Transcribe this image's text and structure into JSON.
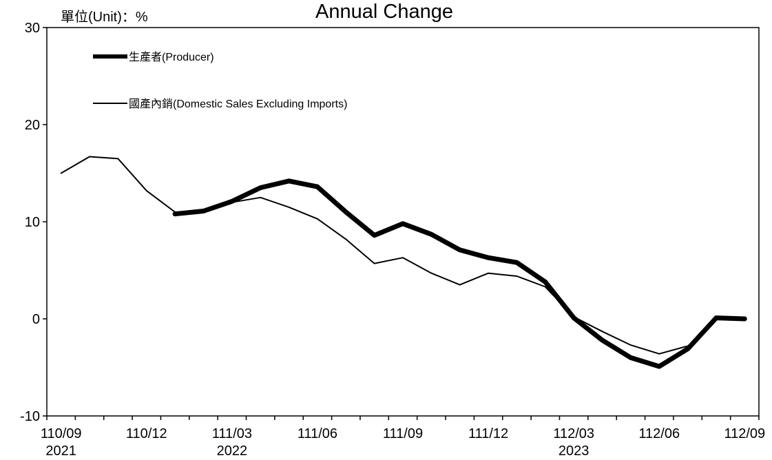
{
  "chart_data": {
    "type": "line",
    "title": "Annual Change",
    "unit_label": "單位(Unit)：%",
    "ylim": [
      -10,
      30
    ],
    "y_ticks": [
      "30",
      "20",
      "10",
      "0",
      "-10"
    ],
    "y_tick_values": [
      30,
      20,
      10,
      0,
      -10
    ],
    "x_months": [
      "2021-09",
      "2021-10",
      "2021-11",
      "2021-12",
      "2022-01",
      "2022-02",
      "2022-03",
      "2022-04",
      "2022-05",
      "2022-06",
      "2022-07",
      "2022-08",
      "2022-09",
      "2022-10",
      "2022-11",
      "2022-12",
      "2023-01",
      "2023-02",
      "2023-03",
      "2023-04",
      "2023-05",
      "2023-06",
      "2023-07",
      "2023-08",
      "2023-09"
    ],
    "x_tick_labels": [
      {
        "month": "2021-09",
        "label": "110/09",
        "year": "2021"
      },
      {
        "month": "2021-12",
        "label": "110/12",
        "year": ""
      },
      {
        "month": "2022-03",
        "label": "111/03",
        "year": "2022"
      },
      {
        "month": "2022-06",
        "label": "111/06",
        "year": ""
      },
      {
        "month": "2022-09",
        "label": "111/09",
        "year": ""
      },
      {
        "month": "2022-12",
        "label": "111/12",
        "year": ""
      },
      {
        "month": "2023-03",
        "label": "112/03",
        "year": "2023"
      },
      {
        "month": "2023-06",
        "label": "112/06",
        "year": ""
      },
      {
        "month": "2023-09",
        "label": "112/09",
        "year": ""
      }
    ],
    "series": [
      {
        "name": "生產者(Producer)",
        "color": "#000000",
        "values": [
          null,
          null,
          null,
          null,
          10.8,
          11.1,
          12.1,
          13.5,
          14.2,
          13.6,
          11.0,
          8.6,
          9.8,
          8.7,
          7.1,
          6.3,
          5.8,
          3.8,
          0.1,
          -2.2,
          -4.0,
          -4.9,
          -3.1,
          0.1,
          0.0
        ]
      },
      {
        "name": "國產內銷(Domestic Sales Excluding Imports)",
        "color": "#000000",
        "values": [
          15.0,
          16.7,
          16.5,
          13.2,
          11.0,
          11.0,
          12.0,
          12.5,
          11.5,
          10.3,
          8.2,
          5.7,
          6.3,
          4.7,
          3.5,
          4.7,
          4.4,
          3.3,
          0.2,
          -1.3,
          -2.7,
          -3.6,
          -2.8,
          null,
          null
        ]
      }
    ],
    "grid": false,
    "legend_placement": "top-left"
  }
}
